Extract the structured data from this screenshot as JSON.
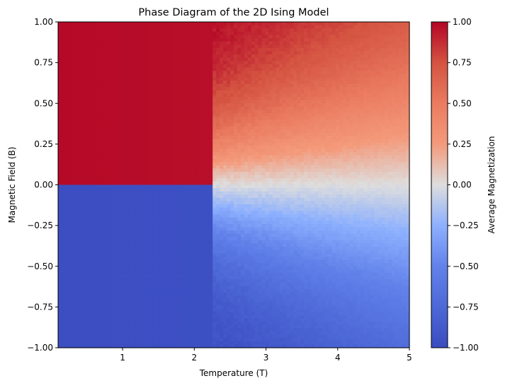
{
  "chart_data": {
    "type": "heatmap",
    "title": "Phase Diagram of the 2D Ising Model",
    "xlabel": "Temperature (T)",
    "ylabel": "Magnetic Field (B)",
    "xlim": [
      0.1,
      5
    ],
    "ylim": [
      -1,
      1
    ],
    "xticks": [
      {
        "value": 1,
        "label": "1"
      },
      {
        "value": 2,
        "label": "2"
      },
      {
        "value": 3,
        "label": "3"
      },
      {
        "value": 4,
        "label": "4"
      },
      {
        "value": 5,
        "label": "5"
      }
    ],
    "yticks": [
      {
        "value": 1,
        "label": "1.00"
      },
      {
        "value": 0.75,
        "label": "0.75"
      },
      {
        "value": 0.5,
        "label": "0.50"
      },
      {
        "value": 0.25,
        "label": "0.25"
      },
      {
        "value": 0,
        "label": "0.00"
      },
      {
        "value": -0.25,
        "label": "−0.25"
      },
      {
        "value": -0.5,
        "label": "−0.50"
      },
      {
        "value": -0.75,
        "label": "−0.75"
      },
      {
        "value": -1,
        "label": "−1.00"
      }
    ],
    "grid": {
      "nx": 100,
      "ny": 100
    },
    "critical_temperature": 2.269,
    "value_samples": [
      {
        "T": 1.0,
        "B": 0.5,
        "M": 1.0
      },
      {
        "T": 1.0,
        "B": -0.5,
        "M": -1.0
      },
      {
        "T": 2.5,
        "B": 0.75,
        "M": 0.9
      },
      {
        "T": 3.0,
        "B": 0.25,
        "M": 0.6
      },
      {
        "T": 5.0,
        "B": 0.75,
        "M": 0.45
      },
      {
        "T": 5.0,
        "B": 0.25,
        "M": 0.1
      },
      {
        "T": 4.0,
        "B": 0.0,
        "M": 0.0
      },
      {
        "T": 3.0,
        "B": -0.5,
        "M": -0.7
      },
      {
        "T": 5.0,
        "B": -0.75,
        "M": -0.5
      }
    ],
    "colorbar": {
      "label": "Average Magnetization",
      "colormap": "coolwarm",
      "range": [
        -1,
        1
      ],
      "ticks": [
        {
          "value": 1,
          "label": "1.00"
        },
        {
          "value": 0.75,
          "label": "0.75"
        },
        {
          "value": 0.5,
          "label": "0.50"
        },
        {
          "value": 0.25,
          "label": "0.25"
        },
        {
          "value": 0,
          "label": "0.00"
        },
        {
          "value": -0.25,
          "label": "−0.25"
        },
        {
          "value": -0.5,
          "label": "−0.50"
        },
        {
          "value": -0.75,
          "label": "−0.75"
        },
        {
          "value": -1,
          "label": "−1.00"
        }
      ]
    },
    "colors": {
      "cold": "#3b4cc0",
      "neutral": "#dddddd",
      "hot": "#b40426"
    }
  }
}
